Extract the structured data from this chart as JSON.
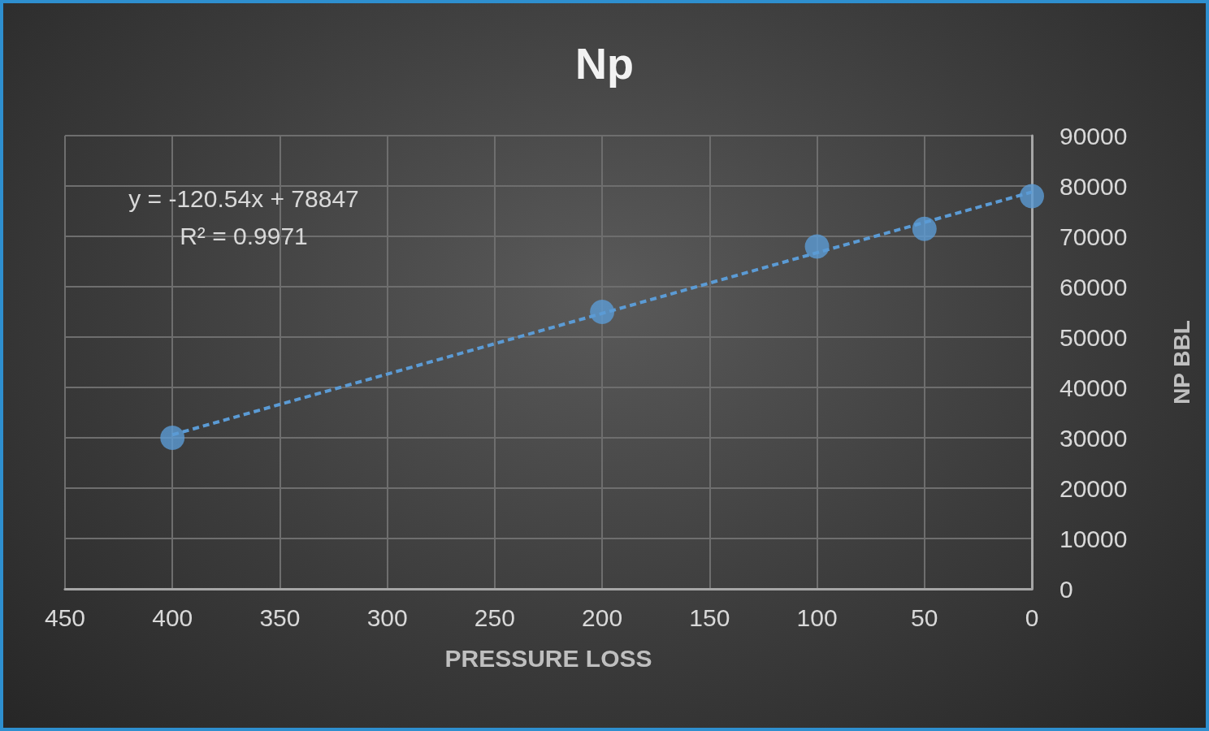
{
  "chart_data": {
    "type": "scatter",
    "title": "Np",
    "xlabel": "PRESSURE LOSS",
    "ylabel": "NP BBL",
    "xlim": [
      450,
      0
    ],
    "xticks": [
      450,
      400,
      350,
      300,
      250,
      200,
      150,
      100,
      50,
      0
    ],
    "ylim": [
      0,
      90000
    ],
    "yticks": [
      0,
      10000,
      20000,
      30000,
      40000,
      50000,
      60000,
      70000,
      80000,
      90000
    ],
    "grid": true,
    "marker": "circle",
    "series": [
      {
        "color": "#5b9bd5",
        "x": [
          400,
          200,
          100,
          50,
          0
        ],
        "values": [
          30000,
          55000,
          68000,
          71500,
          78000
        ]
      },
      {
        "type": "line",
        "color": "#5b9bd5",
        "line_style": "dashed",
        "marker": "none",
        "x": [
          400,
          0
        ],
        "values": [
          30600,
          78800
        ]
      }
    ],
    "annotations": [
      "y = -120.54x + 78847",
      "R² = 0.9971"
    ]
  }
}
